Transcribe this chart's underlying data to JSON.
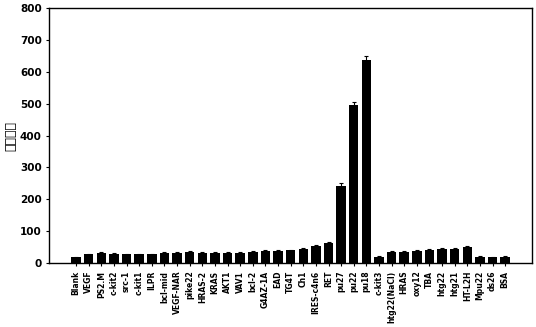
{
  "categories": [
    "Blank",
    "VEGF",
    "PS2.M",
    "c-kit2",
    "src-1",
    "c-kit1",
    "ILPR",
    "bcl-mid",
    "VEGF-NAR",
    "pike22",
    "HRAS-2",
    "KRAS",
    "AKT1",
    "VAV1",
    "bcl-2",
    "G4AZ-1A",
    "EAD",
    "TG4T",
    "Ch1",
    "IRES-c4n6",
    "RET",
    "pu27",
    "pu22",
    "pu18",
    "c-kit3",
    "htg22(NaCl)",
    "HRAS",
    "oxy12",
    "TBA",
    "htg22",
    "htg21",
    "HT-L2H",
    "Mpu22",
    "ds26",
    "BSA"
  ],
  "values": [
    18,
    28,
    33,
    30,
    28,
    28,
    28,
    32,
    32,
    35,
    32,
    33,
    33,
    32,
    35,
    38,
    38,
    40,
    45,
    55,
    62,
    242,
    497,
    637,
    20,
    35,
    35,
    38,
    42,
    45,
    45,
    50,
    20,
    18,
    20
  ],
  "errors": [
    2,
    2,
    2,
    2,
    2,
    2,
    2,
    2,
    2,
    2,
    2,
    2,
    2,
    2,
    2,
    2,
    2,
    2,
    2,
    3,
    3,
    8,
    8,
    12,
    2,
    2,
    2,
    2,
    2,
    2,
    2,
    3,
    2,
    2,
    2
  ],
  "bar_color": "#000000",
  "ylabel": "荧光强度",
  "ylim": [
    0,
    800
  ],
  "yticks": [
    0,
    100,
    200,
    300,
    400,
    500,
    600,
    700,
    800
  ],
  "background_color": "#ffffff",
  "bar_width": 0.75,
  "tick_fontsize": 5.5,
  "ylabel_fontsize": 9,
  "ytick_fontsize": 7.5
}
